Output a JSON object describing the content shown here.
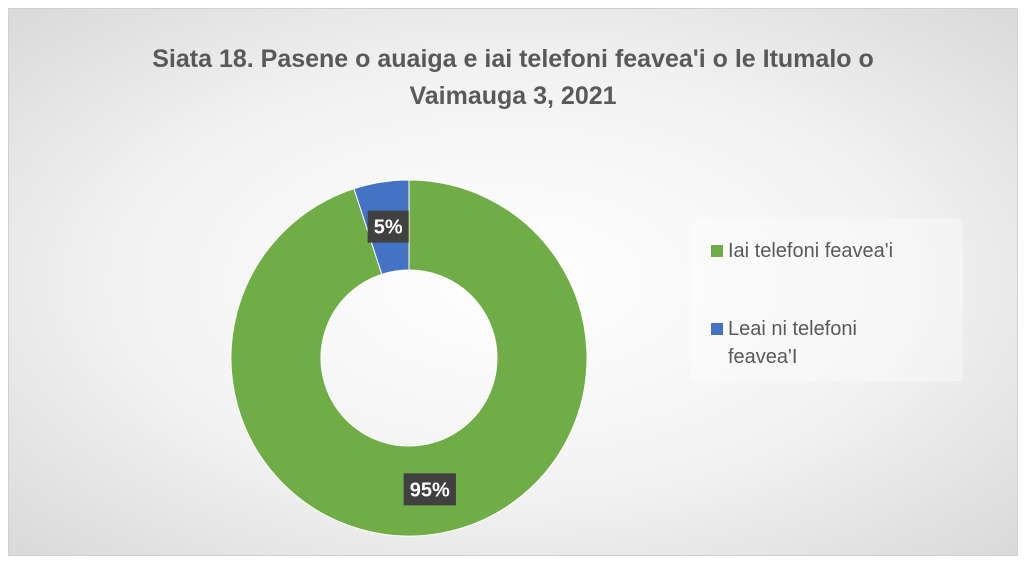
{
  "chart_data": {
    "type": "donut",
    "title": "Siata 18. Pasene o auaiga e iai telefoni feavea'i o le Itumalo o Vaimauga 3, 2021",
    "categories": [
      "Iai telefoni feavea'i",
      "Leai ni telefoni feavea'I"
    ],
    "values": [
      95,
      5
    ],
    "value_labels": [
      "95%",
      "5%"
    ],
    "colors": [
      "#70ad47",
      "#4472c4"
    ],
    "legend": "right"
  }
}
